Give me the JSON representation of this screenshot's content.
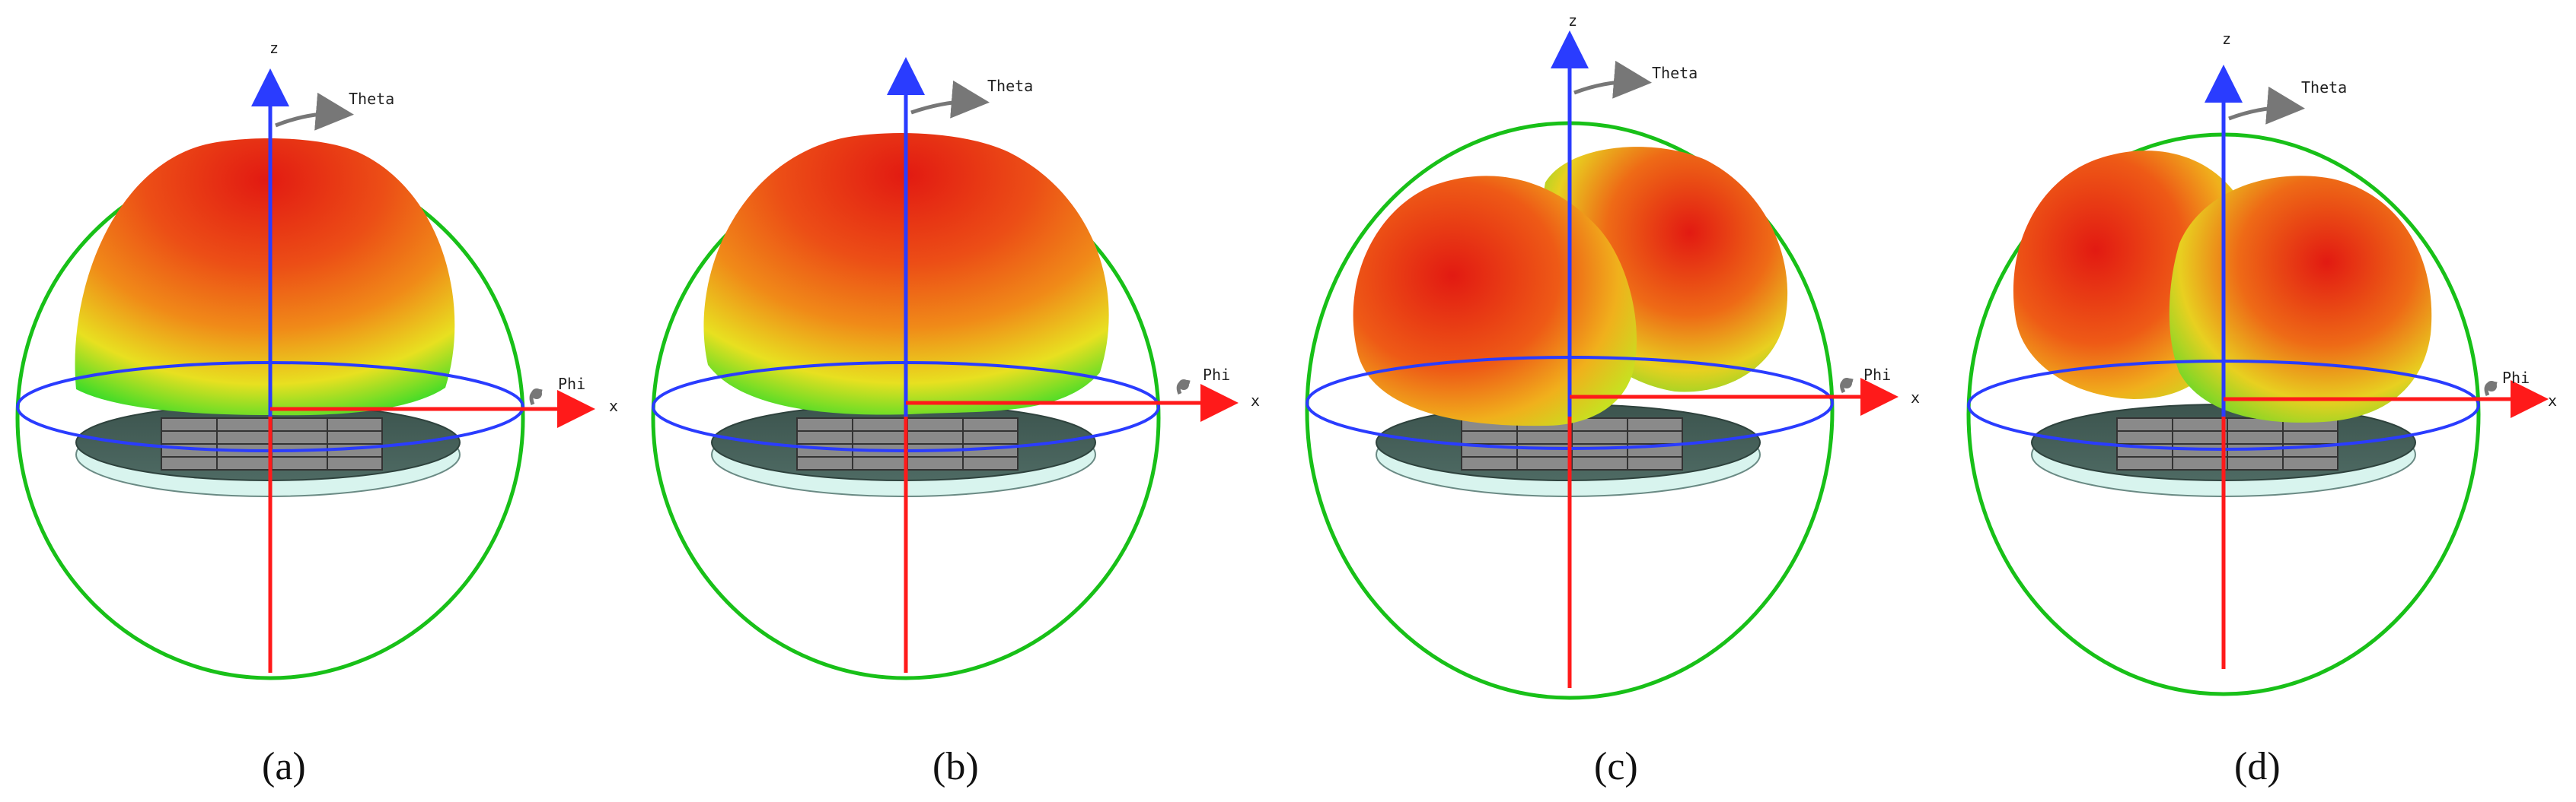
{
  "figure": {
    "axis_labels": {
      "z": "z",
      "x": "x",
      "theta": "Theta",
      "phi": "Phi"
    },
    "colors": {
      "z_axis": "#2a3cff",
      "x_axis": "#ff1a1a",
      "vertical_axis": "#ff1a1a",
      "bounding_sphere": "#18c018",
      "equator_ring": "#2a3cff",
      "annotation_arrow": "#777777",
      "pattern_peak": "#e21a12",
      "pattern_mid": "#f08a18",
      "pattern_low": "#e8e020",
      "pattern_null": "#3fdc28",
      "ground_plane_top": "#405a54",
      "ground_plane_rim": "#d8f4ee",
      "patch_array": "#8a8a8a"
    },
    "panels": [
      {
        "id": "a",
        "caption": "(a)",
        "pattern": "broadside-dome",
        "lobes": 1
      },
      {
        "id": "b",
        "caption": "(b)",
        "pattern": "flattened-dome",
        "lobes": 1
      },
      {
        "id": "c",
        "caption": "(c)",
        "pattern": "two-lobe-split",
        "lobes": 2
      },
      {
        "id": "d",
        "caption": "(d)",
        "pattern": "two-lobe-split",
        "lobes": 2
      }
    ]
  }
}
